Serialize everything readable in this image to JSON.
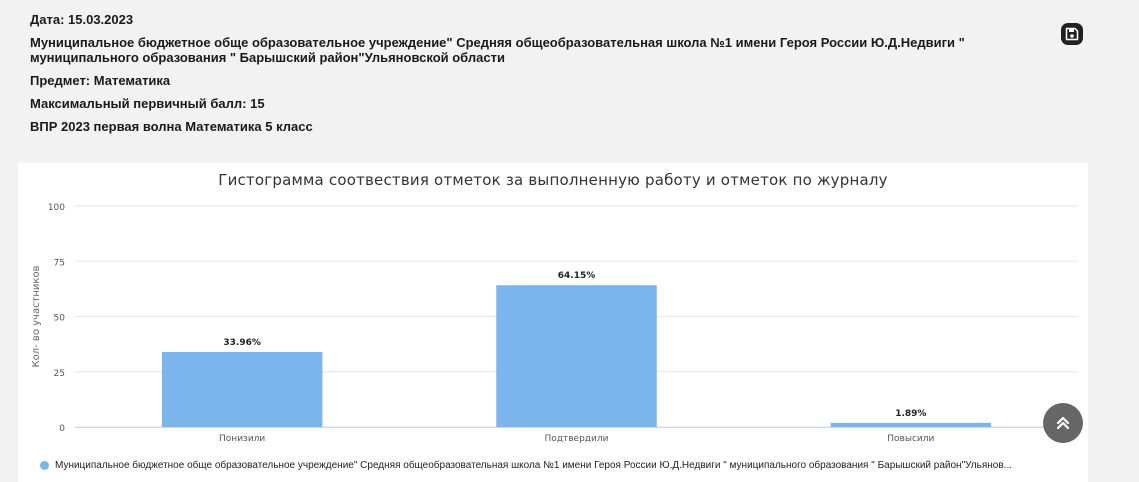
{
  "info": {
    "date": "Дата: 15.03.2023",
    "organization": "Муниципальное бюджетное обще образовательное учреждение\" Средняя общеобразовательная школа №1 имени Героя России Ю.Д.Недвиги \" муниципального образования \" Барышский район\"Ульяновской области",
    "subject": "Предмет: Математика",
    "max_score": "Максимальный первичный балл: 15",
    "work": "ВПР 2023 первая волна Математика 5 класс"
  },
  "icons": {
    "save": "floppy-disk-icon",
    "scroll_top": "double-chevron-up-icon"
  },
  "colors": {
    "bar": "#7cb5ec",
    "grid": "#e6e6e6",
    "background": "#f2f2f2",
    "scroll_button": "#666666"
  },
  "chart_data": {
    "type": "bar",
    "title": "Гистограмма соотвествия отметок за выполненную работу и отметок по журналу",
    "ylabel": "Кол- во участников",
    "xlabel": "",
    "ylim": [
      0,
      100
    ],
    "yticks": [
      "0",
      "25",
      "50",
      "75",
      "100"
    ],
    "categories": [
      "Понизили",
      "Подтвердили",
      "Повысили"
    ],
    "series": [
      {
        "name": "Муниципальное бюджетное обще образовательное учреждение\" Средняя общеобразовательная школа №1 имени Героя России Ю.Д.Недвиги \" муниципального образования \" Барышский район\"Ульянов...",
        "values": [
          33.96,
          64.15,
          1.89
        ],
        "labels": [
          "33.96%",
          "64.15%",
          "1.89%"
        ]
      }
    ],
    "grid": true,
    "legend": "bottom"
  }
}
